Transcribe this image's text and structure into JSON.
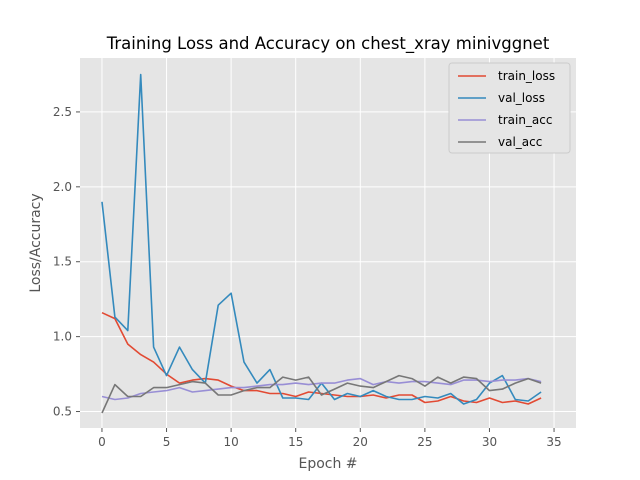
{
  "chart_data": {
    "type": "line",
    "title": "Training Loss and Accuracy on chest_xray minivggnet",
    "xlabel": "Epoch #",
    "ylabel": "Loss/Accuracy",
    "xlim": [
      -1.7,
      36.7
    ],
    "ylim": [
      0.39,
      2.86
    ],
    "xticks": [
      0,
      5,
      10,
      15,
      20,
      25,
      30,
      35
    ],
    "yticks": [
      0.5,
      1.0,
      1.5,
      2.0,
      2.5
    ],
    "ytick_labels": [
      "0.5",
      "1.0",
      "1.5",
      "2.0",
      "2.5"
    ],
    "grid": true,
    "legend_position": "top-right",
    "x": [
      0,
      1,
      2,
      3,
      4,
      5,
      6,
      7,
      8,
      9,
      10,
      11,
      12,
      13,
      14,
      15,
      16,
      17,
      18,
      19,
      20,
      21,
      22,
      23,
      24,
      25,
      26,
      27,
      28,
      29,
      30,
      31,
      32,
      33,
      34
    ],
    "series": [
      {
        "name": "train_loss",
        "color": "#E24A33",
        "values": [
          1.16,
          1.12,
          0.95,
          0.88,
          0.83,
          0.75,
          0.69,
          0.71,
          0.72,
          0.71,
          0.67,
          0.64,
          0.64,
          0.62,
          0.62,
          0.6,
          0.63,
          0.62,
          0.61,
          0.6,
          0.6,
          0.61,
          0.59,
          0.61,
          0.61,
          0.56,
          0.57,
          0.6,
          0.57,
          0.56,
          0.59,
          0.56,
          0.57,
          0.55,
          0.59
        ]
      },
      {
        "name": "val_loss",
        "color": "#348ABD",
        "values": [
          1.9,
          1.13,
          1.04,
          2.75,
          0.93,
          0.74,
          0.93,
          0.78,
          0.69,
          1.21,
          1.29,
          0.83,
          0.69,
          0.78,
          0.59,
          0.59,
          0.58,
          0.69,
          0.58,
          0.62,
          0.6,
          0.64,
          0.6,
          0.58,
          0.58,
          0.6,
          0.59,
          0.62,
          0.55,
          0.58,
          0.69,
          0.74,
          0.58,
          0.57,
          0.63
        ]
      },
      {
        "name": "train_acc",
        "color": "#988ED5",
        "values": [
          0.6,
          0.58,
          0.59,
          0.62,
          0.63,
          0.64,
          0.66,
          0.63,
          0.64,
          0.65,
          0.66,
          0.66,
          0.67,
          0.68,
          0.68,
          0.69,
          0.68,
          0.69,
          0.69,
          0.71,
          0.72,
          0.68,
          0.7,
          0.69,
          0.7,
          0.7,
          0.69,
          0.68,
          0.71,
          0.71,
          0.7,
          0.71,
          0.71,
          0.72,
          0.7
        ]
      },
      {
        "name": "val_acc",
        "color": "#777777",
        "values": [
          0.49,
          0.68,
          0.6,
          0.6,
          0.66,
          0.66,
          0.68,
          0.7,
          0.69,
          0.61,
          0.61,
          0.64,
          0.66,
          0.66,
          0.73,
          0.71,
          0.73,
          0.61,
          0.65,
          0.69,
          0.67,
          0.66,
          0.7,
          0.74,
          0.72,
          0.67,
          0.73,
          0.69,
          0.73,
          0.72,
          0.64,
          0.65,
          0.69,
          0.72,
          0.69
        ]
      }
    ]
  }
}
